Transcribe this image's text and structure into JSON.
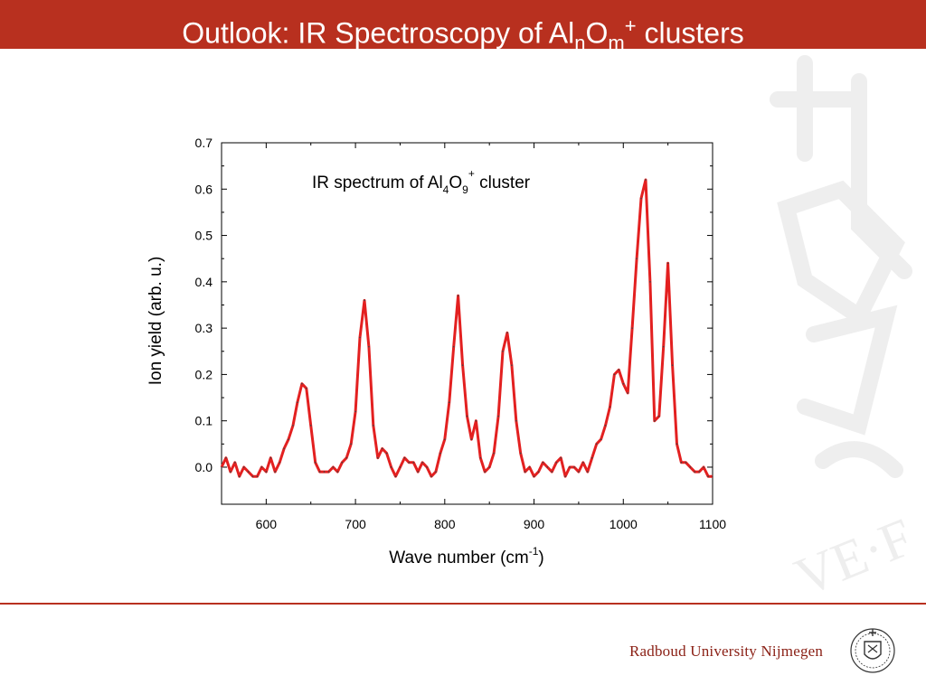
{
  "slide": {
    "title_prefix": "Outlook: IR Spectroscopy of Al",
    "title_sub_n": "n",
    "title_o": "O",
    "title_sub_m": "m",
    "title_sup": "+",
    "title_suffix": " clusters",
    "accent_color": "#b8301f"
  },
  "footer": {
    "university": "Radboud University Nijmegen",
    "seal_icon": "radboud-seal-icon"
  },
  "chart_data": {
    "type": "line",
    "title_prefix": "IR spectrum of Al",
    "title_sub_4": "4",
    "title_o": "O",
    "title_sub_9": "9",
    "title_sup": "+",
    "title_suffix": "  cluster",
    "xlabel_prefix": "Wave number (cm",
    "xlabel_sup": "-1",
    "xlabel_suffix": ")",
    "ylabel": "Ion yield (arb. u.)",
    "xlim": [
      550,
      1100
    ],
    "ylim": [
      -0.08,
      0.7
    ],
    "x_ticks": [
      "600",
      "700",
      "800",
      "900",
      "1000",
      "1100"
    ],
    "x_tick_values": [
      600,
      700,
      800,
      900,
      1000,
      1100
    ],
    "y_ticks": [
      "0.0",
      "0.1",
      "0.2",
      "0.3",
      "0.4",
      "0.5",
      "0.6",
      "0.7"
    ],
    "y_tick_values": [
      0.0,
      0.1,
      0.2,
      0.3,
      0.4,
      0.5,
      0.6,
      0.7
    ],
    "grid": false,
    "line_color": "#e32020",
    "series": [
      {
        "x": [
          550,
          555,
          560,
          565,
          570,
          575,
          580,
          585,
          590,
          595,
          600,
          605,
          610,
          615,
          620,
          625,
          630,
          635,
          640,
          645,
          650,
          655,
          660,
          665,
          670,
          675,
          680,
          685,
          690,
          695,
          700,
          705,
          710,
          715,
          720,
          725,
          730,
          735,
          740,
          745,
          750,
          755,
          760,
          765,
          770,
          775,
          780,
          785,
          790,
          795,
          800,
          805,
          810,
          815,
          820,
          825,
          830,
          835,
          840,
          845,
          850,
          855,
          860,
          865,
          870,
          875,
          880,
          885,
          890,
          895,
          900,
          905,
          910,
          915,
          920,
          925,
          930,
          935,
          940,
          945,
          950,
          955,
          960,
          965,
          970,
          975,
          980,
          985,
          990,
          995,
          1000,
          1005,
          1010,
          1015,
          1020,
          1025,
          1030,
          1035,
          1040,
          1045,
          1050,
          1055,
          1060,
          1065,
          1070,
          1075,
          1080,
          1085,
          1090,
          1095,
          1100
        ],
        "y": [
          0.0,
          0.02,
          -0.01,
          0.01,
          -0.02,
          0.0,
          -0.01,
          -0.02,
          -0.02,
          0.0,
          -0.01,
          0.02,
          -0.01,
          0.01,
          0.04,
          0.06,
          0.09,
          0.14,
          0.18,
          0.17,
          0.09,
          0.01,
          -0.01,
          -0.01,
          -0.01,
          0.0,
          -0.01,
          0.01,
          0.02,
          0.05,
          0.12,
          0.28,
          0.36,
          0.26,
          0.09,
          0.02,
          0.04,
          0.03,
          0.0,
          -0.02,
          0.0,
          0.02,
          0.01,
          0.01,
          -0.01,
          0.01,
          0.0,
          -0.02,
          -0.01,
          0.03,
          0.06,
          0.14,
          0.26,
          0.37,
          0.22,
          0.11,
          0.06,
          0.1,
          0.02,
          -0.01,
          0.0,
          0.03,
          0.11,
          0.25,
          0.29,
          0.22,
          0.1,
          0.03,
          -0.01,
          0.0,
          -0.02,
          -0.01,
          0.01,
          0.0,
          -0.01,
          0.01,
          0.02,
          -0.02,
          0.0,
          0.0,
          -0.01,
          0.01,
          -0.01,
          0.02,
          0.05,
          0.06,
          0.09,
          0.13,
          0.2,
          0.21,
          0.18,
          0.16,
          0.3,
          0.45,
          0.58,
          0.62,
          0.4,
          0.1,
          0.11,
          0.26,
          0.44,
          0.22,
          0.05,
          0.01,
          0.01,
          0.0,
          -0.01,
          -0.01,
          0.0,
          -0.02,
          -0.02
        ]
      }
    ]
  }
}
